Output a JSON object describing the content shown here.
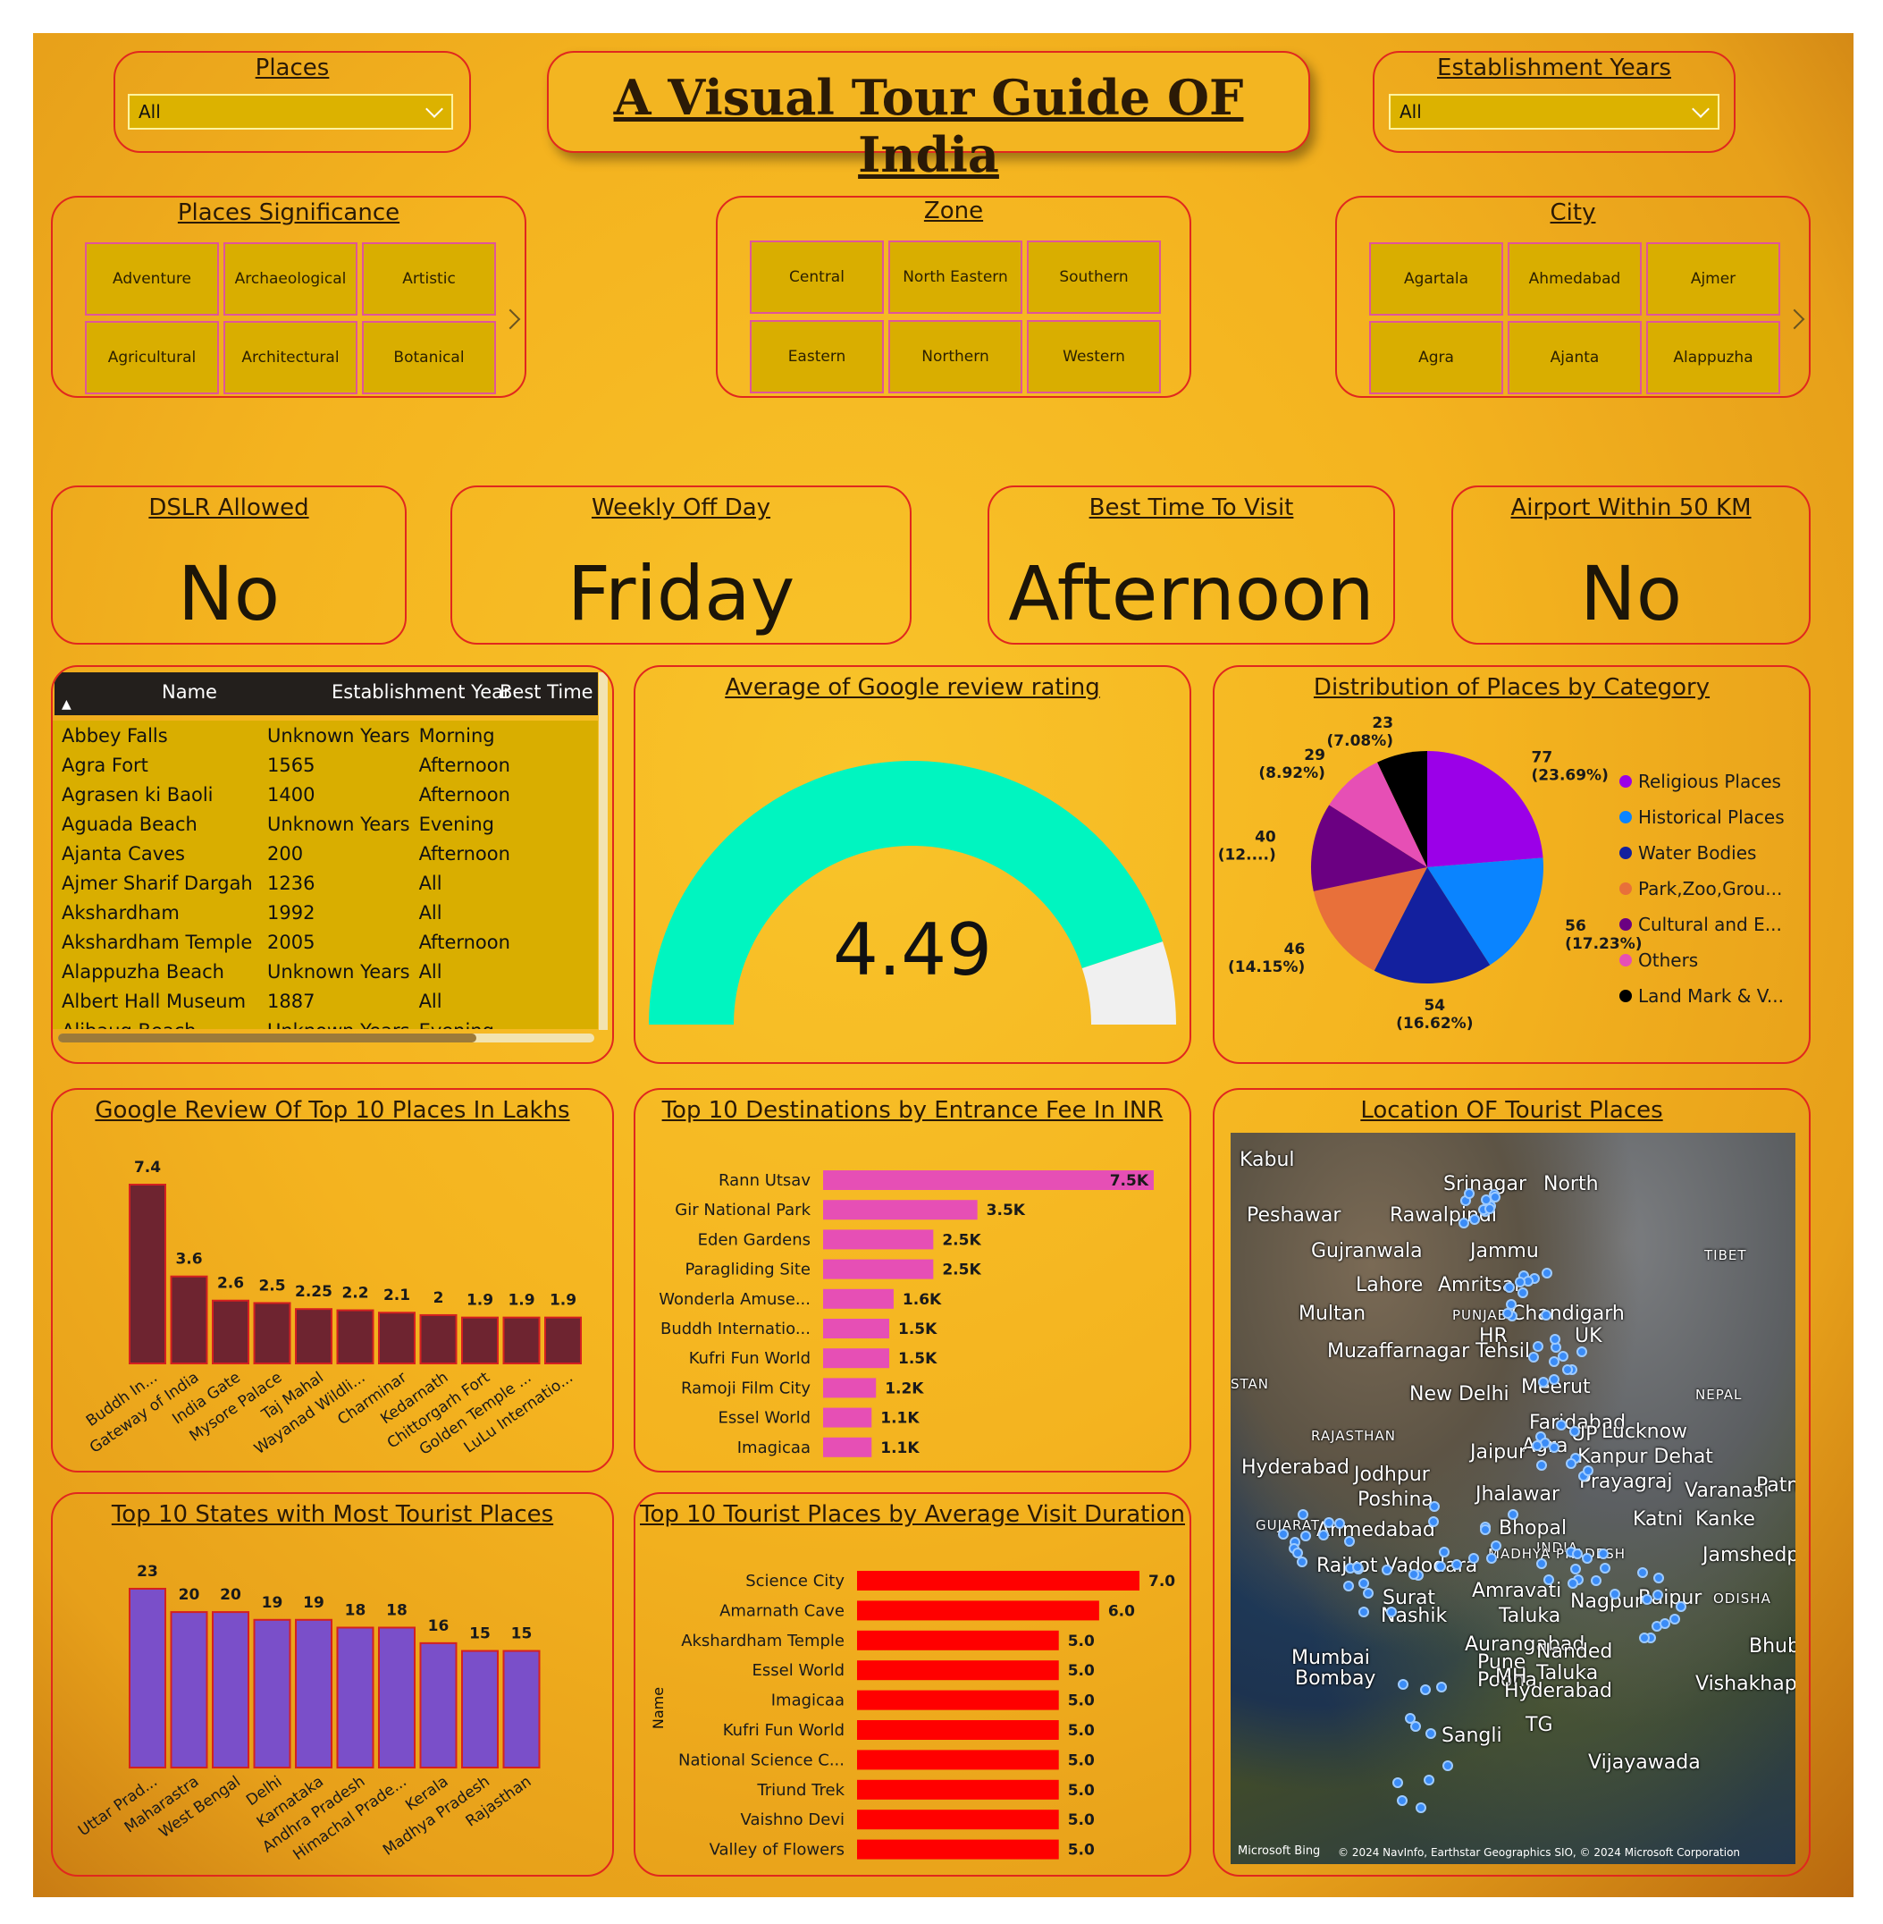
{
  "title": "A Visual Tour Guide OF India",
  "places_filter": {
    "label": "Places",
    "value": "All"
  },
  "years_filter": {
    "label": "Establishment Years",
    "value": "All"
  },
  "significance": {
    "label": "Places Significance",
    "items": [
      "Adventure",
      "Archaeological",
      "Artistic",
      "Agricultural",
      "Architectural",
      "Botanical"
    ]
  },
  "zone": {
    "label": "Zone",
    "items": [
      "Central",
      "North Eastern",
      "Southern",
      "Eastern",
      "Northern",
      "Western"
    ]
  },
  "city": {
    "label": "City",
    "items": [
      "Agartala",
      "Ahmedabad",
      "Ajmer",
      "Agra",
      "Ajanta",
      "Alappuzha"
    ]
  },
  "kpis": {
    "dslr": {
      "label": "DSLR Allowed",
      "value": "No"
    },
    "weekly_off": {
      "label": "Weekly Off Day",
      "value": "Friday"
    },
    "best_time": {
      "label": "Best Time To Visit",
      "value": "Afternoon"
    },
    "airport": {
      "label": "Airport Within 50 KM",
      "value": "No"
    }
  },
  "table": {
    "columns": [
      "Name",
      "Establishment Year",
      "Best Time to"
    ],
    "rows": [
      [
        "Abbey Falls",
        "Unknown Years",
        "Morning"
      ],
      [
        "Agra Fort",
        "1565",
        "Afternoon"
      ],
      [
        "Agrasen ki Baoli",
        "1400",
        "Afternoon"
      ],
      [
        "Aguada Beach",
        "Unknown Years",
        "Evening"
      ],
      [
        "Ajanta Caves",
        "200",
        "Afternoon"
      ],
      [
        "Ajmer Sharif Dargah",
        "1236",
        "All"
      ],
      [
        "Akshardham",
        "1992",
        "All"
      ],
      [
        "Akshardham Temple",
        "2005",
        "Afternoon"
      ],
      [
        "Alappuzha Beach",
        "Unknown Years",
        "All"
      ],
      [
        "Albert Hall Museum",
        "1887",
        "All"
      ],
      [
        "Alibaug Beach",
        "Unknown Years",
        "Evening"
      ]
    ]
  },
  "gauge": {
    "title": "Average of Google review rating",
    "value": "4.49",
    "fill_fraction": 0.898,
    "color": "#00f5c0",
    "track": "#f0f0f0"
  },
  "pie": {
    "title": "Distribution of Places by Category",
    "chart_data": {
      "type": "pie",
      "slices": [
        {
          "name": "Religious Places",
          "value": 77,
          "pct": "(23.69%)",
          "color": "#9b00e8"
        },
        {
          "name": "Historical Places",
          "value": 56,
          "pct": "(17.23%)",
          "color": "#0a84ff"
        },
        {
          "name": "Water Bodies",
          "value": 54,
          "pct": "(16.62%)",
          "color": "#13209e"
        },
        {
          "name": "Park,Zoo,Grou...",
          "value": 46,
          "pct": "(14.15%)",
          "color": "#e8703a"
        },
        {
          "name": "Cultural and E...",
          "value": 40,
          "pct": "(12....)",
          "color": "#6b0082"
        },
        {
          "name": "Others",
          "value": 29,
          "pct": "(8.92%)",
          "color": "#e64fb5"
        },
        {
          "name": "Land Mark & V...",
          "value": 23,
          "pct": "(7.08%)",
          "color": "#000000"
        }
      ]
    }
  },
  "reviews": {
    "title": "Google Review Of Top 10 Places In Lakhs",
    "chart_data": {
      "type": "bar",
      "color": "#6e2430",
      "categories": [
        "Buddh In...",
        "Gateway of India",
        "India Gate",
        "Mysore Palace",
        "Taj Mahal",
        "Wayanad Wildli...",
        "Charminar",
        "Kedarnath",
        "Chittorgarh Fort",
        "Golden Temple ...",
        "LuLu Internatio..."
      ],
      "values": [
        7.4,
        3.6,
        2.6,
        2.5,
        2.25,
        2.2,
        2.1,
        2,
        1.9,
        1.9,
        1.9
      ],
      "labels": [
        "7.4",
        "3.6",
        "2.6",
        "2.5",
        "2.25",
        "2.2",
        "2.1",
        "2",
        "1.9",
        "1.9",
        "1.9"
      ]
    }
  },
  "fees": {
    "title": "Top 10 Destinations by Entrance Fee In INR",
    "chart_data": {
      "type": "bar",
      "orientation": "horizontal",
      "color": "#e64fb5",
      "categories": [
        "Rann Utsav",
        "Gir National Park",
        "Eden Gardens",
        "Paragliding Site",
        "Wonderla Amuse...",
        "Buddh Internatio...",
        "Kufri Fun World",
        "Ramoji Film City",
        "Essel World",
        "Imagicaa"
      ],
      "values": [
        7500,
        3500,
        2500,
        2500,
        1600,
        1500,
        1500,
        1200,
        1100,
        1100
      ],
      "labels": [
        "7.5K",
        "3.5K",
        "2.5K",
        "2.5K",
        "1.6K",
        "1.5K",
        "1.5K",
        "1.2K",
        "1.1K",
        "1.1K"
      ]
    }
  },
  "states": {
    "title": "Top 10 States with Most Tourist Places",
    "chart_data": {
      "type": "bar",
      "color": "#7a4fc9",
      "categories": [
        "Uttar Prad...",
        "Maharastra",
        "West Bengal",
        "Delhi",
        "Karnataka",
        "Andhra Pradesh",
        "Himachal Prade...",
        "Kerala",
        "Madhya Pradesh",
        "Rajasthan"
      ],
      "values": [
        23,
        20,
        20,
        19,
        19,
        18,
        18,
        16,
        15,
        15
      ],
      "labels": [
        "23",
        "20",
        "20",
        "19",
        "19",
        "18",
        "18",
        "16",
        "15",
        "15"
      ]
    }
  },
  "duration": {
    "title": "Top 10 Tourist Places by Average Visit Duration",
    "ylabel": "Name",
    "chart_data": {
      "type": "bar",
      "orientation": "horizontal",
      "color": "#ff0000",
      "categories": [
        "Science City",
        "Amarnath Cave",
        "Akshardham Temple",
        "Essel World",
        "Imagicaa",
        "Kufri Fun World",
        "National Science C...",
        "Triund Trek",
        "Vaishno Devi",
        "Valley of Flowers"
      ],
      "values": [
        7.0,
        6.0,
        5.0,
        5.0,
        5.0,
        5.0,
        5.0,
        5.0,
        5.0,
        5.0
      ],
      "labels": [
        "7.0",
        "6.0",
        "5.0",
        "5.0",
        "5.0",
        "5.0",
        "5.0",
        "5.0",
        "5.0",
        "5.0"
      ]
    }
  },
  "map": {
    "title": "Location OF Tourist Places",
    "labels": [
      "Kabul",
      "Srinagar",
      "North",
      "Peshawar",
      "Rawalpindi",
      "Gujranwala",
      "Jammu",
      "TIBET",
      "Lahore",
      "Amritsar",
      "Multan",
      "PUNJAB",
      "Chandigarh",
      "HR",
      "UK",
      "Muzaffarnagar Tehsil",
      "STAN",
      "New Delhi",
      "Meerut",
      "NEPAL",
      "Faridabad",
      "RAJASTHAN",
      "Lucknow",
      "UP",
      "Agra",
      "Jaipur",
      "Kanpur Dehat",
      "Hyderabad",
      "Jodhpur",
      "Prayagraj",
      "Jhalawar",
      "Varanasi",
      "Patna",
      "Poshina",
      "GUJARAT",
      "Ahmedabad",
      "Bhopal",
      "Katni",
      "Kanke",
      "INDIA",
      "MADHYA PRADESH",
      "Rajkot",
      "Vadodara",
      "Jamshedpur",
      "Surat",
      "Amravati",
      "Nagpur",
      "Raipur",
      "ODISHA",
      "Nashik",
      "Taluka",
      "Mumbai",
      "Bombay",
      "Aurangabad",
      "Pune",
      "Poona",
      "MH",
      "Nanded",
      "Taluka",
      "Bhuban",
      "Vishakhapatnam",
      "Hyderabad",
      "TG",
      "Sangli",
      "Vijayawada"
    ],
    "attribution": "© 2024 NavInfo, Earthstar Geographics SIO, © 2024 Microsoft Corporation",
    "bing": "Microsoft Bing"
  }
}
